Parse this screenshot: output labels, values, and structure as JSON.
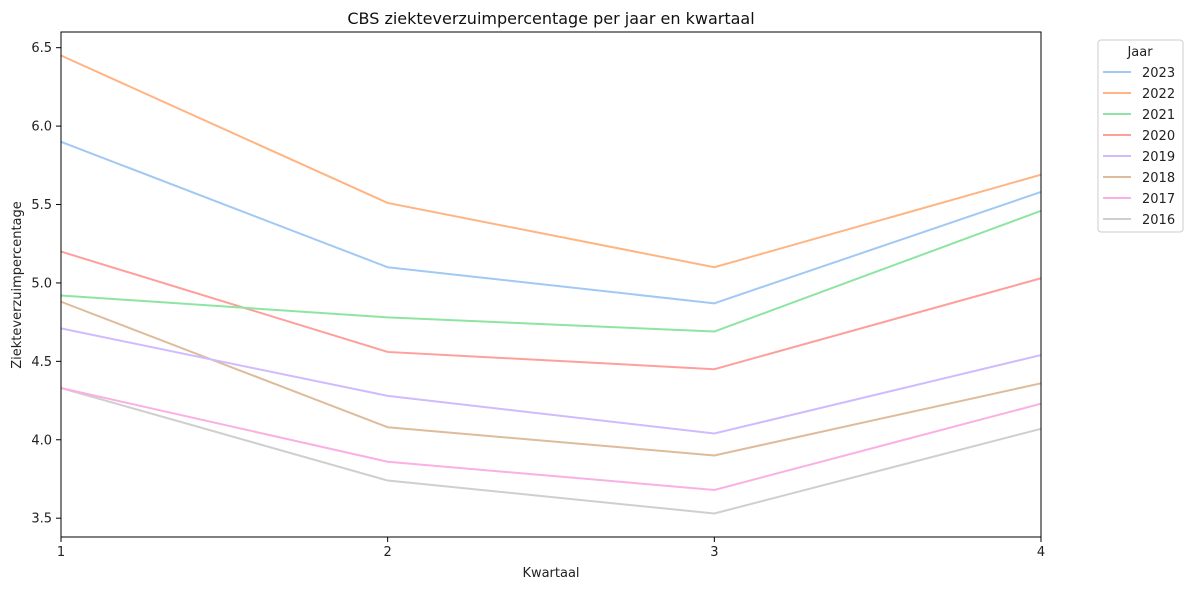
{
  "chart_data": {
    "type": "line",
    "title": "CBS ziekteverzuimpercentage per jaar en kwartaal",
    "xlabel": "Kwartaal",
    "ylabel": "Ziekteverzuimpercentage",
    "x": [
      1,
      2,
      3,
      4
    ],
    "xticks": [
      "1",
      "2",
      "3",
      "4"
    ],
    "yticks": [
      "3.5",
      "4.0",
      "4.5",
      "5.0",
      "5.5",
      "6.0",
      "6.5"
    ],
    "xlim": [
      1,
      4
    ],
    "ylim": [
      3.38,
      6.6
    ],
    "grid": false,
    "legend_title": "Jaar",
    "legend_position": "outside-top-right",
    "series": [
      {
        "name": "2023",
        "color": "#a1c9f4",
        "values": [
          5.9,
          5.1,
          4.87,
          5.58
        ]
      },
      {
        "name": "2022",
        "color": "#ffb482",
        "values": [
          6.45,
          5.51,
          5.1,
          5.69
        ]
      },
      {
        "name": "2021",
        "color": "#8de5a1",
        "values": [
          4.92,
          4.78,
          4.69,
          5.46
        ]
      },
      {
        "name": "2020",
        "color": "#ff9f9b",
        "values": [
          5.2,
          4.56,
          4.45,
          5.03
        ]
      },
      {
        "name": "2019",
        "color": "#d0bbff",
        "values": [
          4.71,
          4.28,
          4.04,
          4.54
        ]
      },
      {
        "name": "2018",
        "color": "#debb9b",
        "values": [
          4.88,
          4.08,
          3.9,
          4.36
        ]
      },
      {
        "name": "2017",
        "color": "#fab0e4",
        "values": [
          4.33,
          3.86,
          3.68,
          4.23
        ]
      },
      {
        "name": "2016",
        "color": "#cfcfcf",
        "values": [
          4.33,
          3.74,
          3.53,
          4.07
        ]
      }
    ]
  }
}
